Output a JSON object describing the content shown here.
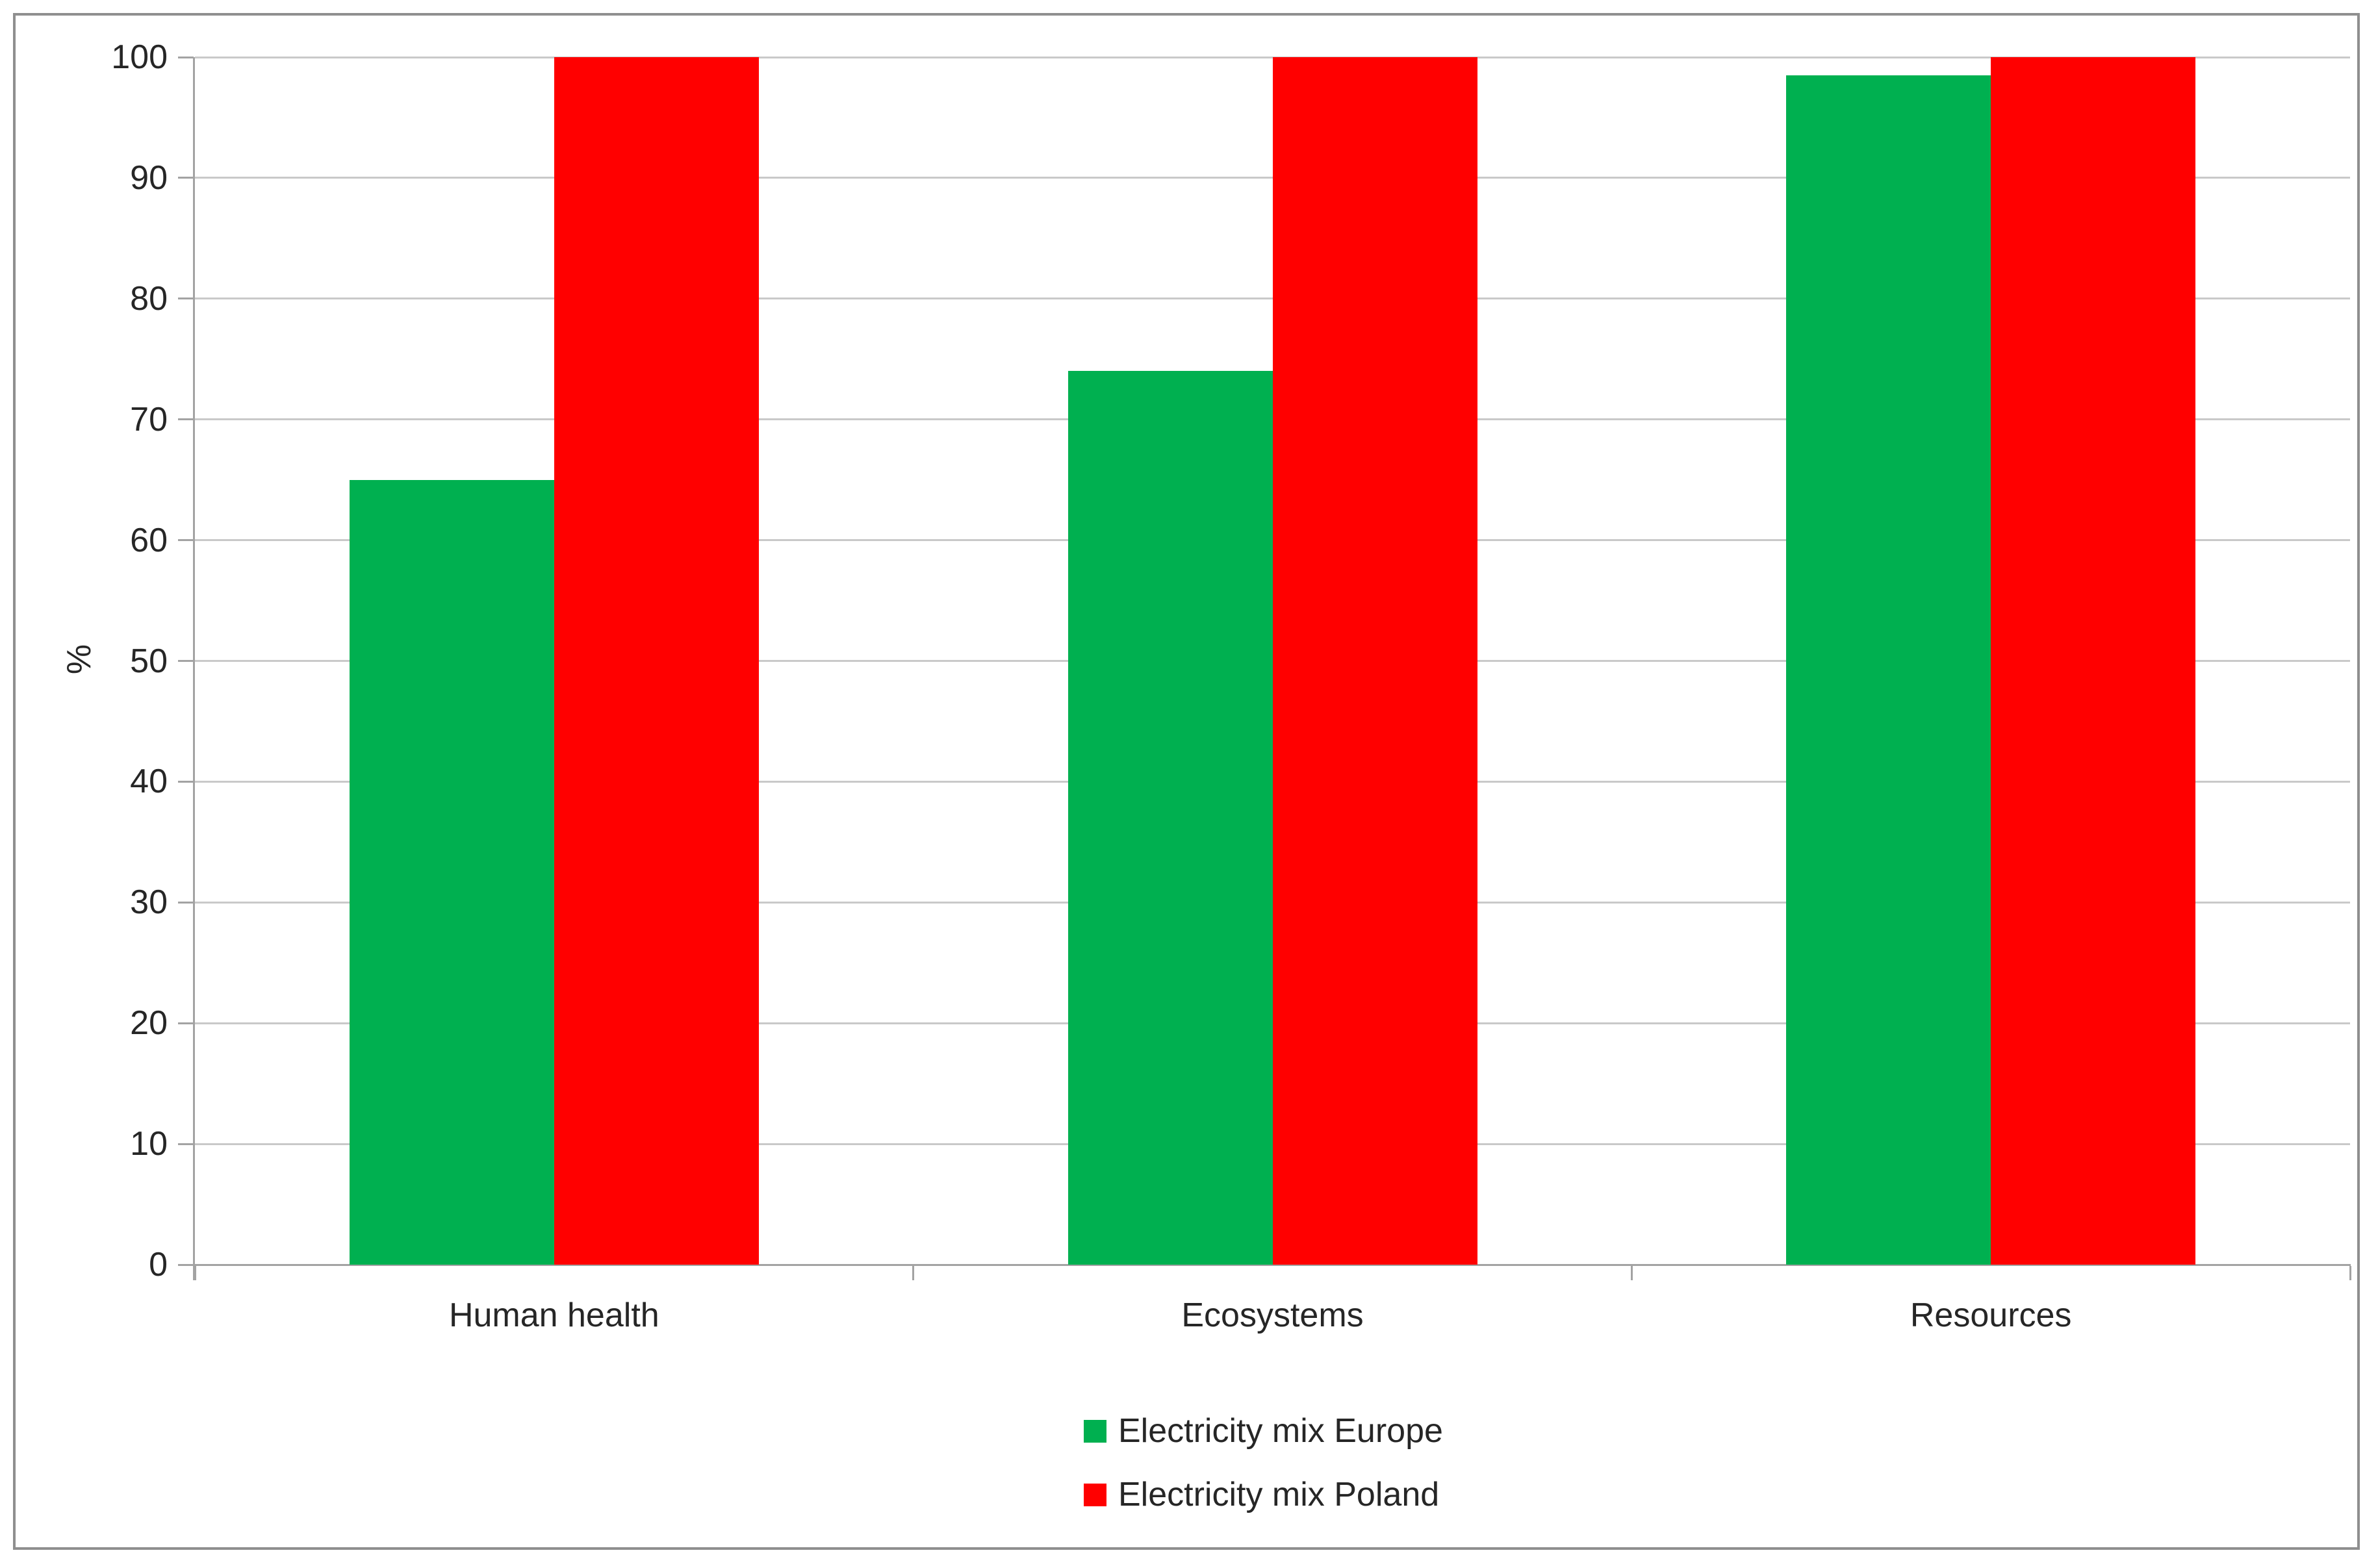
{
  "chart_data": {
    "type": "bar",
    "title": "",
    "categories": [
      "Human health",
      "Ecosystems",
      "Resources"
    ],
    "series": [
      {
        "name": "Electricity mix Europe",
        "color": "#00B050",
        "values": [
          65,
          74,
          98.5
        ]
      },
      {
        "name": "Electricity mix Poland",
        "color": "#FF0000",
        "values": [
          100,
          100,
          100
        ]
      }
    ],
    "ylabel": "%",
    "ylim": [
      0,
      100
    ],
    "ytick_step": 10,
    "yticks": [
      "0",
      "10",
      "20",
      "30",
      "40",
      "50",
      "60",
      "70",
      "80",
      "90",
      "100"
    ],
    "grid": "horizontal",
    "legend_position": "bottom-center-stacked"
  },
  "styles": {
    "background": "#FFFFFF",
    "frame_border_color": "#8F8F8F",
    "gridline_color": "#C9C9C9",
    "axis_color": "#A3A3A3",
    "text_color": "#262626"
  }
}
